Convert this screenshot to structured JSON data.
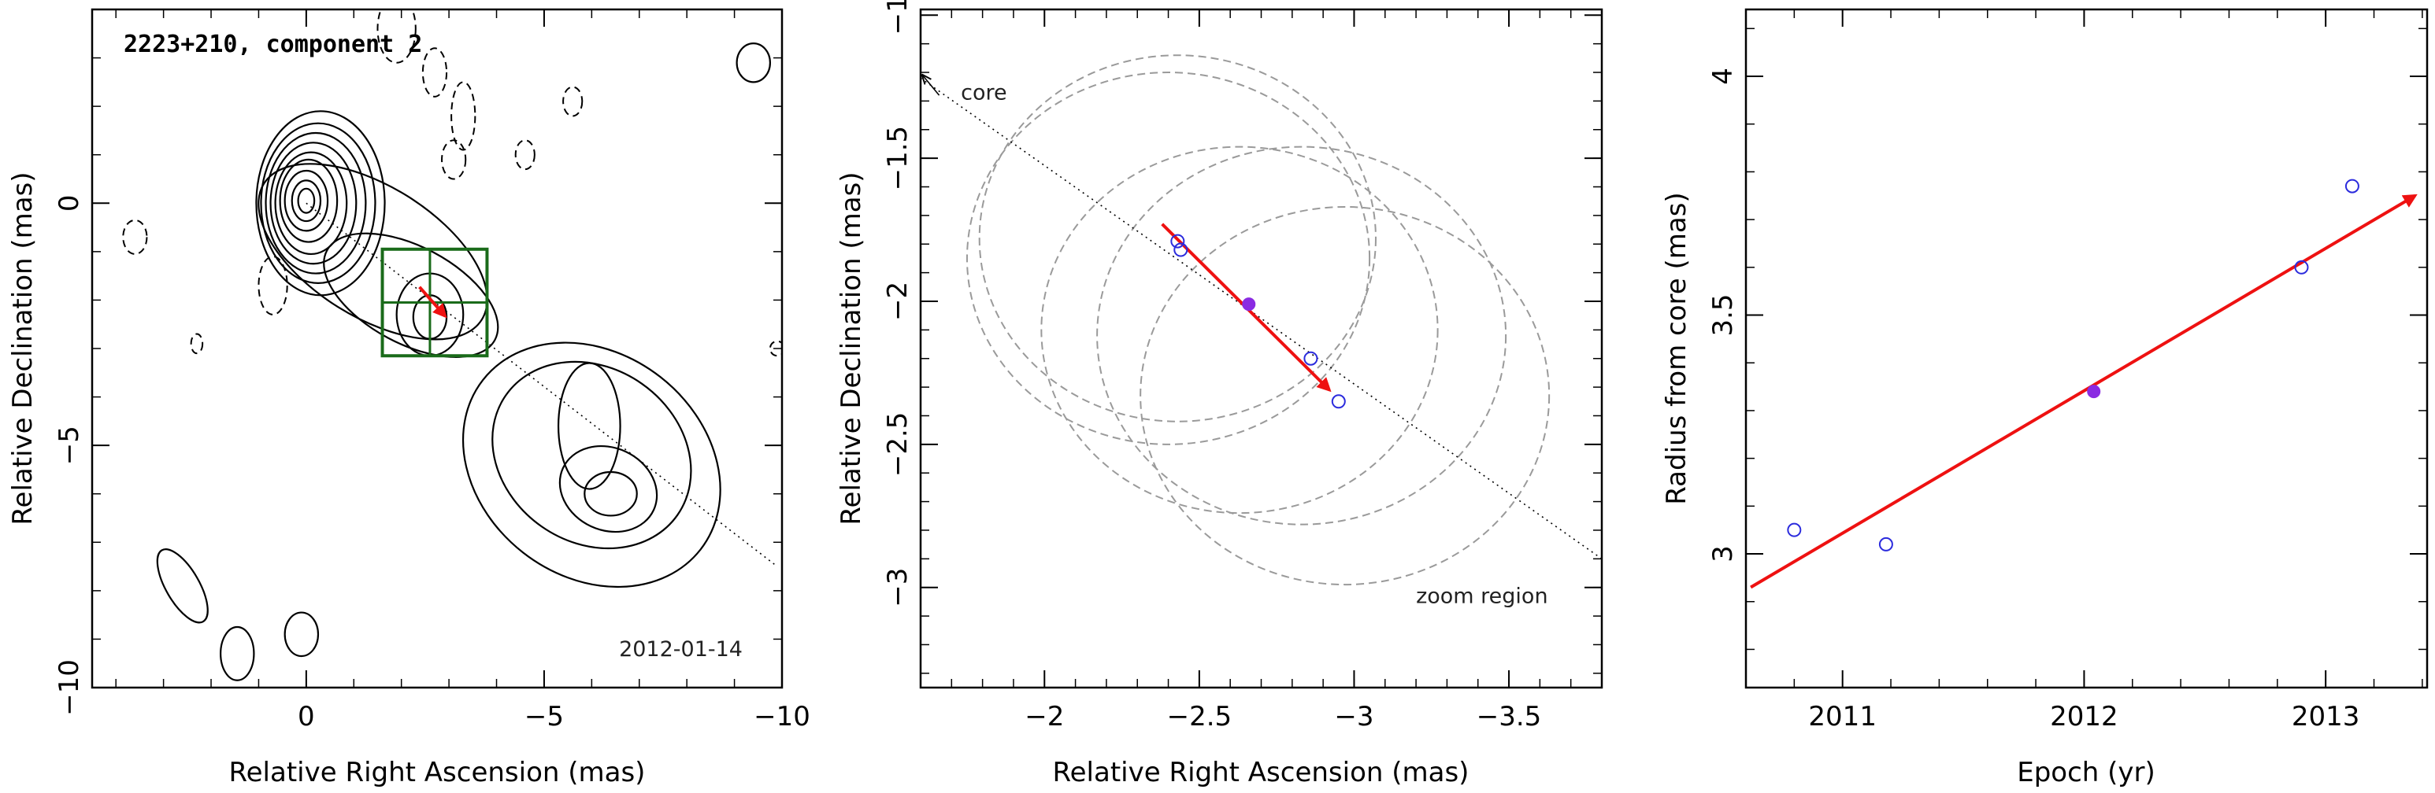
{
  "colors": {
    "contour": "#000000",
    "box": "#1a6b1a",
    "motion_arrow": "#ee1111",
    "open_marker": "#2b2bdd",
    "filled_marker": "#8a2be2",
    "gauss_circle": "#9a9a9a",
    "guide_line": "#000000"
  },
  "chart_data": [
    {
      "type": "contour",
      "title": "2223+210, component 2",
      "date_label": "2012-01-14",
      "xlabel": "Relative Right Ascension (mas)",
      "ylabel": "Relative Declination (mas)",
      "xlim": [
        4.5,
        -10
      ],
      "ylim": [
        -10,
        4
      ],
      "xticks": [
        0,
        -5,
        -10
      ],
      "xtick_labels": [
        "0",
        "−5",
        "−10"
      ],
      "yticks": [
        0,
        -5,
        -10
      ],
      "ytick_labels": [
        "0",
        "−5",
        "−10"
      ],
      "core": [
        0,
        0
      ],
      "guide_line": {
        "from": [
          0,
          0
        ],
        "to": [
          -9.9,
          -7.5
        ]
      },
      "zoom_box": {
        "x": [
          -1.6,
          -3.8
        ],
        "y": [
          -0.95,
          -3.15
        ],
        "x_mid": -2.6,
        "y_mid": -2.05
      },
      "motion_arrow": {
        "from": [
          -2.38,
          -1.73
        ],
        "to": [
          -2.92,
          -2.33
        ]
      },
      "contours_positive": [
        {
          "center": [
            -0.3,
            0.0
          ],
          "rx": 1.35,
          "ry": 1.9,
          "rot": 0
        },
        {
          "center": [
            -0.25,
            0.0
          ],
          "rx": 1.2,
          "ry": 1.65,
          "rot": 0
        },
        {
          "center": [
            -0.2,
            0.0
          ],
          "rx": 1.05,
          "ry": 1.45,
          "rot": 0
        },
        {
          "center": [
            -0.15,
            0.0
          ],
          "rx": 0.9,
          "ry": 1.25,
          "rot": 0
        },
        {
          "center": [
            -0.1,
            0.0
          ],
          "rx": 0.75,
          "ry": 1.05,
          "rot": 0
        },
        {
          "center": [
            -0.05,
            0.05
          ],
          "rx": 0.6,
          "ry": 0.85,
          "rot": 0
        },
        {
          "center": [
            0.0,
            0.05
          ],
          "rx": 0.45,
          "ry": 0.62,
          "rot": 0
        },
        {
          "center": [
            0.0,
            0.05
          ],
          "rx": 0.3,
          "ry": 0.42,
          "rot": 0
        },
        {
          "center": [
            0.0,
            0.05
          ],
          "rx": 0.17,
          "ry": 0.25,
          "rot": 0
        },
        {
          "center": [
            -1.4,
            -1.0
          ],
          "rx": 2.7,
          "ry": 1.35,
          "rot": 32
        },
        {
          "center": [
            -2.2,
            -1.9
          ],
          "rx": 2.0,
          "ry": 1.0,
          "rot": 28
        },
        {
          "center": [
            -2.6,
            -2.3
          ],
          "rx": 0.7,
          "ry": 0.85,
          "rot": 0
        },
        {
          "center": [
            -2.6,
            -2.35
          ],
          "rx": 0.35,
          "ry": 0.45,
          "rot": 0
        },
        {
          "center": [
            -6.0,
            -5.4
          ],
          "rx": 2.9,
          "ry": 2.3,
          "rot": 38
        },
        {
          "center": [
            -6.0,
            -5.2
          ],
          "rx": 2.2,
          "ry": 1.8,
          "rot": 35
        },
        {
          "center": [
            -5.95,
            -4.6
          ],
          "rx": 0.65,
          "ry": 1.3,
          "rot": 0
        },
        {
          "center": [
            -6.35,
            -5.9
          ],
          "rx": 1.05,
          "ry": 0.85,
          "rot": 25
        },
        {
          "center": [
            -6.4,
            -6.0
          ],
          "rx": 0.55,
          "ry": 0.45,
          "rot": 0
        },
        {
          "center": [
            -9.4,
            2.9
          ],
          "rx": 0.35,
          "ry": 0.4,
          "rot": 0
        },
        {
          "center": [
            2.6,
            -7.9
          ],
          "rx": 0.35,
          "ry": 0.85,
          "rot": -30
        },
        {
          "center": [
            1.45,
            -9.3
          ],
          "rx": 0.35,
          "ry": 0.55,
          "rot": 0
        },
        {
          "center": [
            0.1,
            -8.9
          ],
          "rx": 0.35,
          "ry": 0.45,
          "rot": 0
        }
      ],
      "contours_negative": [
        {
          "center": [
            -1.9,
            3.6
          ],
          "rx": 0.4,
          "ry": 0.7,
          "rot": 0
        },
        {
          "center": [
            -2.7,
            2.7
          ],
          "rx": 0.25,
          "ry": 0.5,
          "rot": 0
        },
        {
          "center": [
            -3.3,
            1.8
          ],
          "rx": 0.25,
          "ry": 0.7,
          "rot": 0
        },
        {
          "center": [
            -3.1,
            0.9
          ],
          "rx": 0.25,
          "ry": 0.4,
          "rot": 0
        },
        {
          "center": [
            -4.6,
            1.0
          ],
          "rx": 0.2,
          "ry": 0.3,
          "rot": 0
        },
        {
          "center": [
            -5.6,
            2.1
          ],
          "rx": 0.2,
          "ry": 0.3,
          "rot": 0
        },
        {
          "center": [
            3.6,
            -0.7
          ],
          "rx": 0.25,
          "ry": 0.35,
          "rot": 0
        },
        {
          "center": [
            0.7,
            -1.7
          ],
          "rx": 0.3,
          "ry": 0.6,
          "rot": 0
        },
        {
          "center": [
            2.3,
            -2.9
          ],
          "rx": 0.12,
          "ry": 0.2,
          "rot": 0
        },
        {
          "center": [
            -9.9,
            -3.0
          ],
          "rx": 0.15,
          "ry": 0.15,
          "rot": 0
        }
      ]
    },
    {
      "type": "scatter",
      "xlabel": "Relative Right Ascension (mas)",
      "ylabel": "Relative Declination (mas)",
      "xlim": [
        -1.6,
        -3.8
      ],
      "ylim": [
        -3.35,
        -0.98
      ],
      "xticks": [
        -2,
        -2.5,
        -3,
        -3.5
      ],
      "xtick_labels": [
        "−2",
        "−2.5",
        "−3",
        "−3.5"
      ],
      "yticks": [
        -1,
        -1.5,
        -2,
        -2.5,
        -3
      ],
      "ytick_labels": [
        "−1",
        "−1.5",
        "−2",
        "−2.5",
        "−3"
      ],
      "annotations": [
        {
          "text": "core",
          "at": [
            -1.73,
            -1.27
          ]
        },
        {
          "text": "zoom region",
          "at": [
            -3.2,
            -3.03
          ]
        }
      ],
      "core_arrow": {
        "from": [
          -1.66,
          -1.28
        ],
        "to": [
          -1.6,
          -1.22
        ]
      },
      "guide_line": {
        "from": [
          -1.6,
          -1.22
        ],
        "to": [
          -3.8,
          -2.9
        ]
      },
      "points_open": [
        [
          -2.43,
          -1.79
        ],
        [
          -2.44,
          -1.82
        ],
        [
          -2.86,
          -2.2
        ],
        [
          -2.95,
          -2.35
        ]
      ],
      "points_filled": [
        [
          -2.66,
          -2.01
        ]
      ],
      "circles": [
        {
          "center": [
            -2.4,
            -1.85
          ],
          "r": 0.65
        },
        {
          "center": [
            -2.43,
            -1.78
          ],
          "r": 0.64
        },
        {
          "center": [
            -2.63,
            -2.1
          ],
          "r": 0.64
        },
        {
          "center": [
            -2.83,
            -2.12
          ],
          "r": 0.66
        },
        {
          "center": [
            -2.97,
            -2.33
          ],
          "r": 0.66
        }
      ],
      "motion_arrow": {
        "from": [
          -2.38,
          -1.73
        ],
        "to": [
          -2.92,
          -2.31
        ]
      }
    },
    {
      "type": "scatter",
      "xlabel": "Epoch (yr)",
      "ylabel": "Radius from core (mas)",
      "xlim": [
        2010.6,
        2013.42
      ],
      "ylim": [
        2.72,
        4.14
      ],
      "xticks": [
        2011,
        2012,
        2013
      ],
      "xtick_labels": [
        "2011",
        "2012",
        "2013"
      ],
      "yticks": [
        3,
        3.5,
        4
      ],
      "ytick_labels": [
        "3",
        "3.5",
        "4"
      ],
      "points_open": [
        [
          2010.8,
          3.05
        ],
        [
          2011.18,
          3.02
        ],
        [
          2012.9,
          3.6
        ],
        [
          2013.11,
          3.77
        ]
      ],
      "points_filled": [
        [
          2012.04,
          3.34
        ]
      ],
      "fit_arrow": {
        "from": [
          2010.62,
          2.93
        ],
        "to": [
          2013.37,
          3.75
        ]
      }
    }
  ]
}
